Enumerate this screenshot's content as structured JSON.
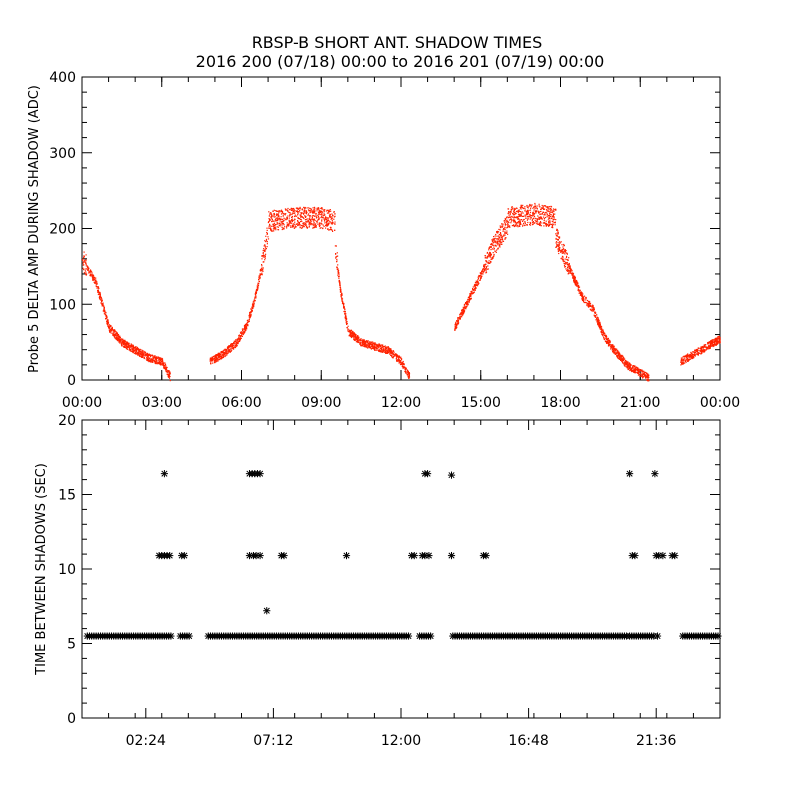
{
  "header": {
    "title": "RBSP-B SHORT ANT. SHADOW TIMES",
    "subtitle": "2016 200 (07/18) 00:00 to 2016 201 (07/19) 00:00"
  },
  "chart_data": [
    {
      "type": "scatter",
      "ylabel": "Probe 5 DELTA AMP DURING SHADOW (ADC)",
      "xlabel": "",
      "xlim": [
        0,
        24
      ],
      "ylim": [
        0,
        400
      ],
      "yticks": [
        "0",
        "100",
        "200",
        "300",
        "400"
      ],
      "xticks": [
        "00:00",
        "03:00",
        "06:00",
        "09:00",
        "12:00",
        "15:00",
        "18:00",
        "21:00",
        "00:00"
      ],
      "marker_color": "#ff2200",
      "segments": [
        {
          "x": [
            0.0,
            0.5,
            1.0,
            1.5,
            2.0,
            2.5,
            3.0,
            3.3
          ],
          "y": [
            160,
            130,
            70,
            50,
            40,
            30,
            25,
            5
          ]
        },
        {
          "x": [
            4.8,
            5.3,
            5.8,
            6.2,
            6.5,
            6.8,
            7.0
          ],
          "y": [
            25,
            35,
            50,
            75,
            110,
            160,
            200
          ]
        },
        {
          "x": [
            7.0,
            8.0,
            9.0,
            9.5
          ],
          "y": [
            210,
            215,
            215,
            210
          ]
        },
        {
          "x": [
            9.5,
            9.7,
            10.0,
            10.5,
            11.0,
            11.5,
            12.0,
            12.3
          ],
          "y": [
            180,
            120,
            65,
            50,
            45,
            40,
            25,
            5
          ]
        },
        {
          "x": [
            14.0,
            14.5,
            15.0,
            15.5,
            16.0
          ],
          "y": [
            70,
            105,
            140,
            180,
            205
          ]
        },
        {
          "x": [
            16.0,
            17.0,
            17.8
          ],
          "y": [
            215,
            220,
            215
          ]
        },
        {
          "x": [
            17.8,
            18.3,
            18.8,
            19.2,
            19.6,
            20.0,
            20.5,
            21.0,
            21.3
          ],
          "y": [
            190,
            150,
            110,
            95,
            60,
            40,
            20,
            10,
            3
          ]
        },
        {
          "x": [
            22.5,
            23.0,
            23.5,
            24.0
          ],
          "y": [
            25,
            35,
            45,
            55
          ]
        }
      ]
    },
    {
      "type": "scatter",
      "ylabel": "TIME BETWEEN SHADOWS (SEC)",
      "xlabel": "",
      "xlim": [
        0,
        24
      ],
      "ylim": [
        0,
        20
      ],
      "yticks": [
        "0",
        "5",
        "10",
        "15",
        "20"
      ],
      "xticks": [
        "02:24",
        "07:12",
        "12:00",
        "16:48",
        "21:36"
      ],
      "xtick_hours": [
        2.4,
        7.2,
        12.0,
        16.8,
        21.6
      ],
      "marker": "asterisk",
      "baseline": {
        "y": 5.5,
        "ranges": [
          [
            0.2,
            3.35
          ],
          [
            3.7,
            4.1
          ],
          [
            4.75,
            12.35
          ],
          [
            12.7,
            13.15
          ],
          [
            13.95,
            20.5
          ],
          [
            20.6,
            21.55
          ],
          [
            21.65,
            21.7
          ],
          [
            22.6,
            23.95
          ]
        ]
      },
      "points": [
        {
          "x": 2.9,
          "y": 10.9
        },
        {
          "x": 3.0,
          "y": 10.9
        },
        {
          "x": 3.1,
          "y": 10.9
        },
        {
          "x": 3.2,
          "y": 10.9
        },
        {
          "x": 3.3,
          "y": 10.9
        },
        {
          "x": 3.75,
          "y": 10.9
        },
        {
          "x": 3.85,
          "y": 10.9
        },
        {
          "x": 3.1,
          "y": 16.4
        },
        {
          "x": 6.3,
          "y": 10.9
        },
        {
          "x": 6.45,
          "y": 10.9
        },
        {
          "x": 6.55,
          "y": 10.9
        },
        {
          "x": 6.7,
          "y": 10.9
        },
        {
          "x": 6.3,
          "y": 16.4
        },
        {
          "x": 6.4,
          "y": 16.4
        },
        {
          "x": 6.5,
          "y": 16.4
        },
        {
          "x": 6.6,
          "y": 16.4
        },
        {
          "x": 6.7,
          "y": 16.4
        },
        {
          "x": 6.95,
          "y": 7.2
        },
        {
          "x": 7.5,
          "y": 10.9
        },
        {
          "x": 7.6,
          "y": 10.9
        },
        {
          "x": 9.95,
          "y": 10.9
        },
        {
          "x": 12.4,
          "y": 10.9
        },
        {
          "x": 12.5,
          "y": 10.9
        },
        {
          "x": 12.8,
          "y": 10.9
        },
        {
          "x": 12.9,
          "y": 10.9
        },
        {
          "x": 13.05,
          "y": 10.9
        },
        {
          "x": 12.9,
          "y": 16.4
        },
        {
          "x": 13.0,
          "y": 16.4
        },
        {
          "x": 13.9,
          "y": 10.9
        },
        {
          "x": 13.9,
          "y": 16.3
        },
        {
          "x": 15.1,
          "y": 10.9
        },
        {
          "x": 15.2,
          "y": 10.9
        },
        {
          "x": 20.7,
          "y": 10.9
        },
        {
          "x": 20.8,
          "y": 10.9
        },
        {
          "x": 21.6,
          "y": 10.9
        },
        {
          "x": 21.7,
          "y": 10.9
        },
        {
          "x": 21.85,
          "y": 10.9
        },
        {
          "x": 22.2,
          "y": 10.9
        },
        {
          "x": 22.3,
          "y": 10.9
        },
        {
          "x": 20.6,
          "y": 16.4
        },
        {
          "x": 21.55,
          "y": 16.4
        }
      ]
    }
  ]
}
